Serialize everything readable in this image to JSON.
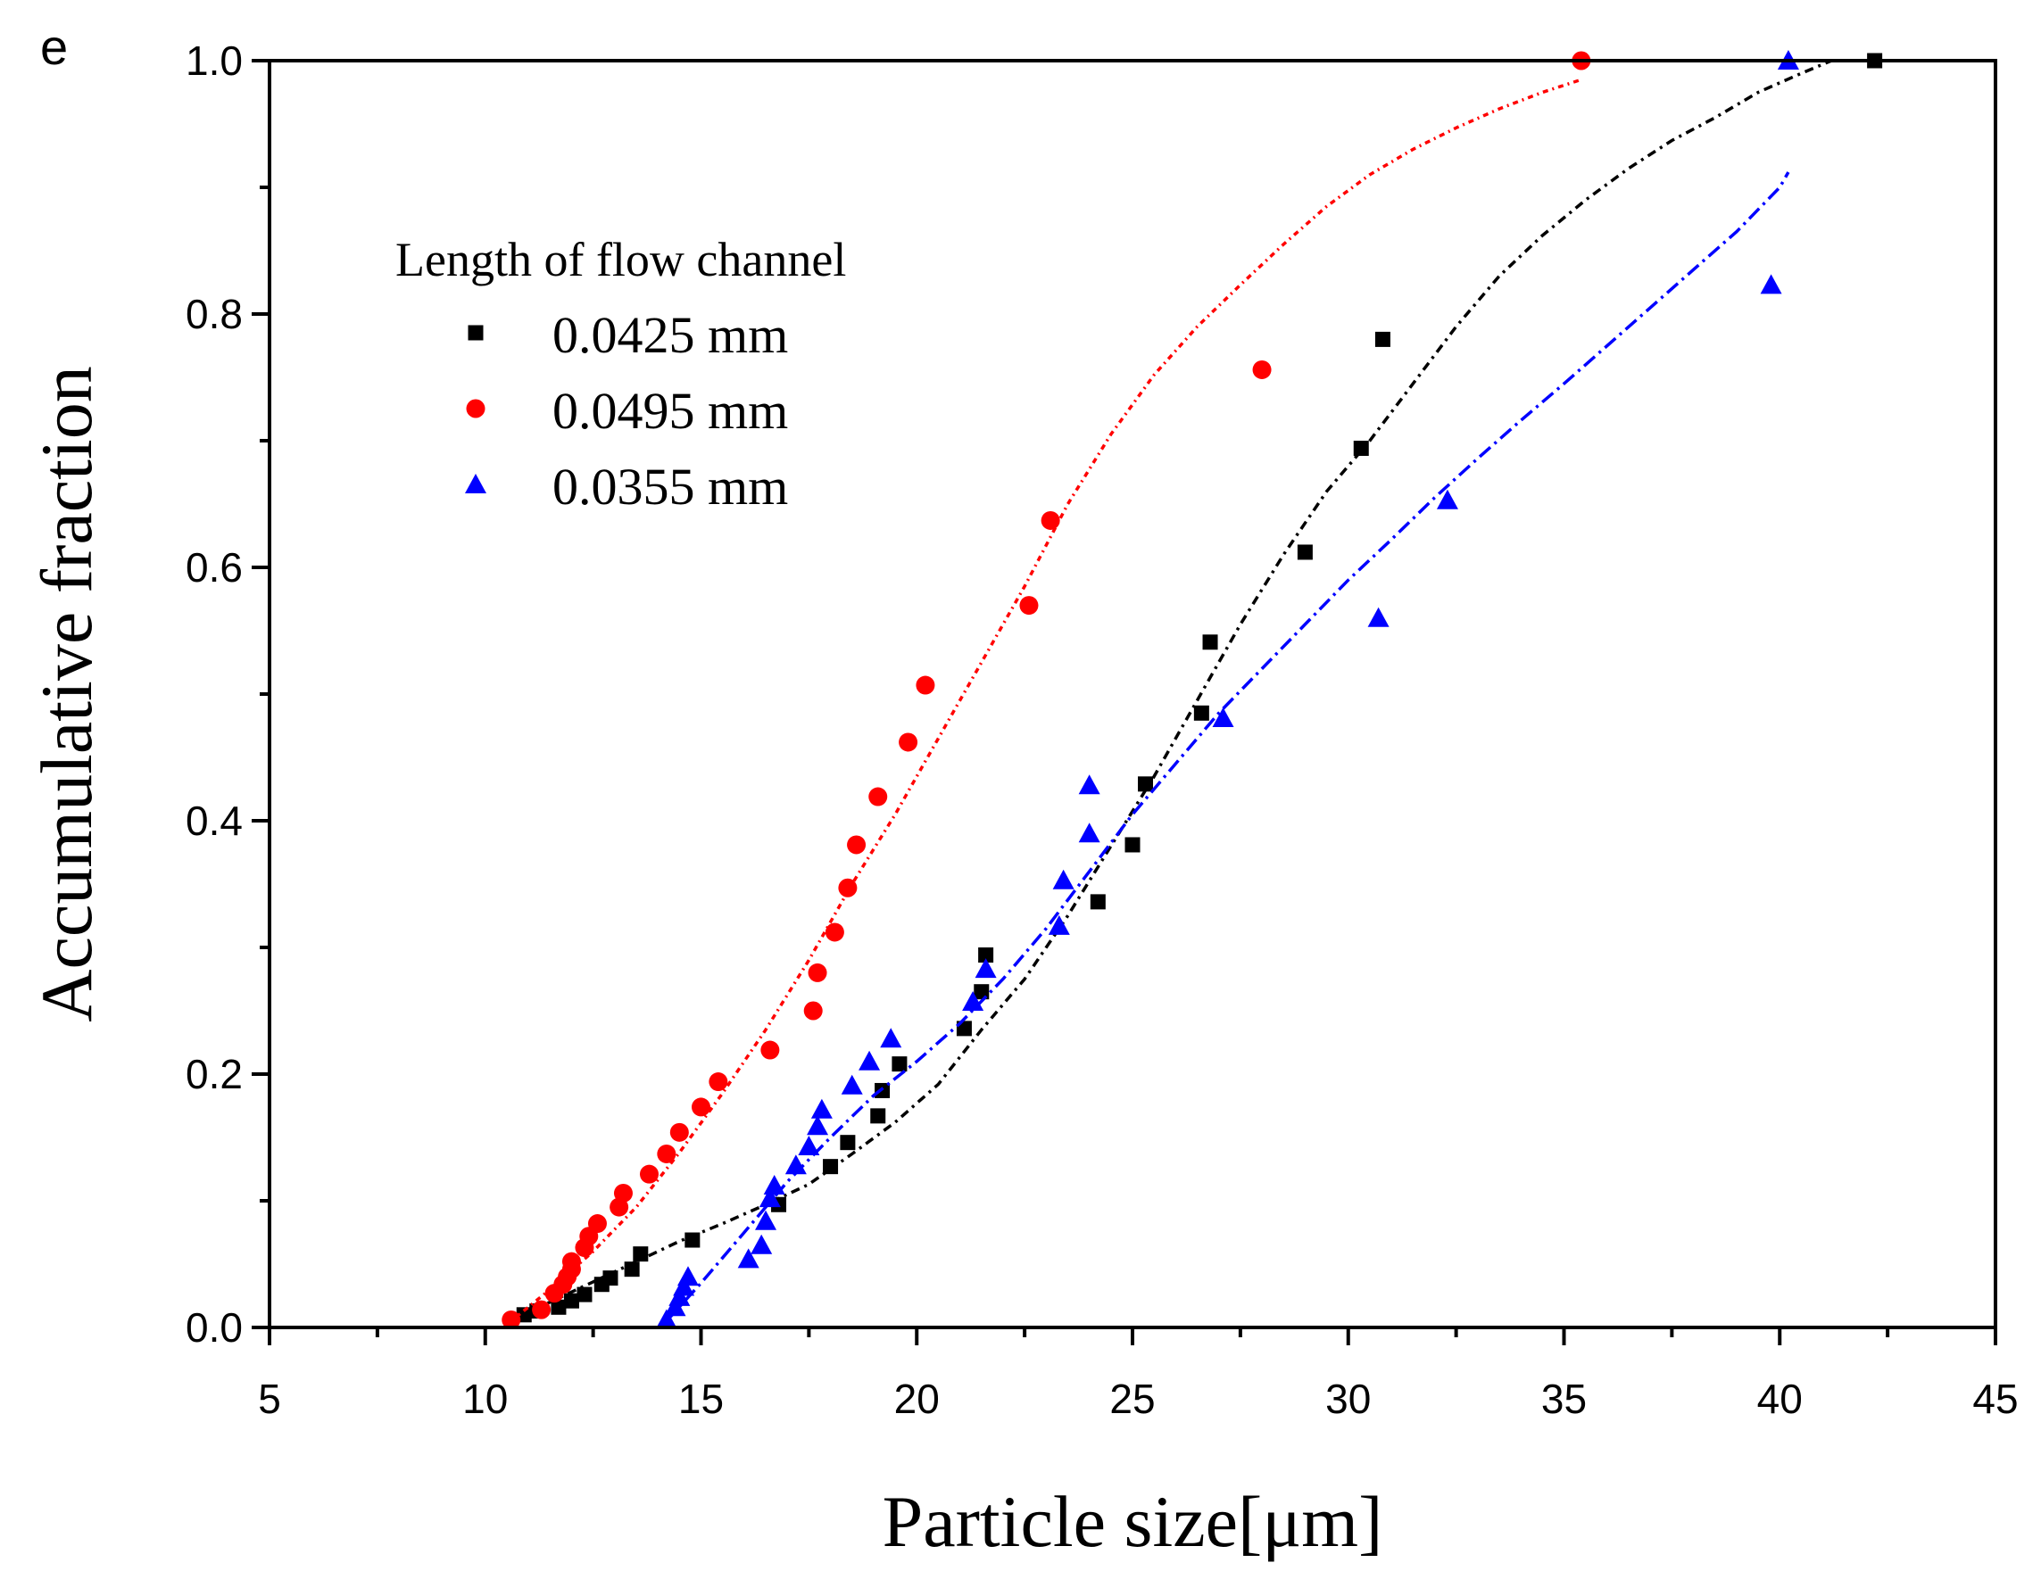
{
  "panel_label": "e",
  "chart_data": {
    "type": "scatter",
    "xlabel": "Particle size[μm]",
    "ylabel": "Accumulative fraction",
    "xlim": [
      5,
      45
    ],
    "ylim": [
      0,
      1.0
    ],
    "xticks": [
      5,
      10,
      15,
      20,
      25,
      30,
      35,
      40,
      45
    ],
    "yticks": [
      0.0,
      0.2,
      0.4,
      0.6,
      0.8,
      1.0
    ],
    "xtick_labels": [
      "5",
      "10",
      "15",
      "20",
      "25",
      "30",
      "35",
      "40",
      "45"
    ],
    "ytick_labels": [
      "0.0",
      "0.2",
      "0.4",
      "0.6",
      "0.8",
      "1.0"
    ],
    "grid": false,
    "legend": {
      "title": "Length of flow channel",
      "placement": "upper-left"
    },
    "series": [
      {
        "name": "0.0425 mm",
        "color": "#000000",
        "marker": "square",
        "x": [
          10.9,
          11.2,
          11.7,
          12.0,
          12.3,
          12.7,
          12.9,
          13.4,
          13.6,
          14.8,
          16.8,
          18.0,
          18.4,
          19.1,
          19.2,
          19.6,
          21.1,
          21.5,
          21.6,
          24.2,
          25.0,
          25.3,
          26.6,
          26.8,
          29.0,
          30.3,
          30.8,
          42.2
        ],
        "y": [
          0.01,
          0.013,
          0.016,
          0.021,
          0.026,
          0.034,
          0.039,
          0.046,
          0.058,
          0.069,
          0.097,
          0.127,
          0.146,
          0.167,
          0.187,
          0.208,
          0.236,
          0.265,
          0.294,
          0.336,
          0.381,
          0.429,
          0.485,
          0.541,
          0.612,
          0.694,
          0.78,
          1.0
        ],
        "fit_x": [
          10.5,
          11.5,
          12.5,
          13.5,
          14.5,
          15.5,
          16.5,
          17.5,
          18.5,
          19.5,
          20.5,
          21.5,
          22.5,
          23.5,
          24.5,
          25.5,
          26.5,
          27.5,
          28.5,
          29.5,
          30.5,
          31.5,
          32.5,
          33.5,
          34.5,
          35.5,
          36.5,
          37.5,
          38.5,
          39.5,
          40.5,
          41.2
        ],
        "fit_y": [
          0.005,
          0.02,
          0.036,
          0.052,
          0.068,
          0.082,
          0.097,
          0.113,
          0.137,
          0.162,
          0.192,
          0.235,
          0.275,
          0.325,
          0.38,
          0.435,
          0.495,
          0.555,
          0.61,
          0.66,
          0.7,
          0.745,
          0.79,
          0.83,
          0.862,
          0.89,
          0.915,
          0.937,
          0.955,
          0.975,
          0.99,
          1.0
        ]
      },
      {
        "name": "0.0495 mm",
        "color": "#ff0000",
        "marker": "circle",
        "x": [
          10.6,
          11.3,
          11.6,
          11.8,
          11.9,
          12.0,
          12.0,
          12.3,
          12.4,
          12.6,
          13.1,
          13.2,
          13.8,
          14.2,
          14.5,
          15.0,
          15.4,
          16.6,
          17.6,
          17.7,
          18.1,
          18.4,
          18.6,
          19.1,
          19.8,
          20.2,
          22.6,
          23.1,
          28.0,
          35.4
        ],
        "y": [
          0.006,
          0.014,
          0.027,
          0.034,
          0.04,
          0.046,
          0.052,
          0.063,
          0.072,
          0.082,
          0.095,
          0.106,
          0.121,
          0.137,
          0.154,
          0.174,
          0.194,
          0.219,
          0.25,
          0.28,
          0.312,
          0.347,
          0.381,
          0.419,
          0.462,
          0.507,
          0.57,
          0.637,
          0.756,
          1.0
        ],
        "fit_x": [
          10.6,
          11.5,
          12.5,
          13.5,
          14.5,
          15.5,
          16.5,
          17.5,
          18.5,
          19.5,
          20.5,
          21.5,
          22.5,
          23.5,
          24.5,
          25.5,
          26.5,
          27.5,
          28.5,
          29.5,
          30.5,
          31.5,
          32.5,
          33.5,
          34.5,
          35.4
        ],
        "fit_y": [
          0.005,
          0.03,
          0.06,
          0.095,
          0.138,
          0.185,
          0.235,
          0.29,
          0.35,
          0.405,
          0.465,
          0.525,
          0.585,
          0.65,
          0.705,
          0.752,
          0.79,
          0.823,
          0.855,
          0.885,
          0.91,
          0.93,
          0.947,
          0.962,
          0.975,
          0.985
        ]
      },
      {
        "name": "0.0355 mm",
        "color": "#0000ff",
        "marker": "triangle",
        "x": [
          14.2,
          14.4,
          14.5,
          14.6,
          14.7,
          16.1,
          16.4,
          16.5,
          16.6,
          16.7,
          17.2,
          17.5,
          17.7,
          17.8,
          18.5,
          18.9,
          19.4,
          21.3,
          21.6,
          23.3,
          23.4,
          24.0,
          24.0,
          27.1,
          30.7,
          32.3,
          39.8,
          40.2
        ],
        "y": [
          0.006,
          0.016,
          0.024,
          0.032,
          0.04,
          0.054,
          0.065,
          0.084,
          0.102,
          0.112,
          0.128,
          0.143,
          0.159,
          0.172,
          0.191,
          0.21,
          0.228,
          0.257,
          0.283,
          0.317,
          0.353,
          0.39,
          0.428,
          0.481,
          0.56,
          0.653,
          0.823,
          1.0
        ],
        "fit_x": [
          14.2,
          15.0,
          16.0,
          17.0,
          18.0,
          19.0,
          20.0,
          21.0,
          22.0,
          23.0,
          24.0,
          25.0,
          26.0,
          27.0,
          28.0,
          29.0,
          30.0,
          31.0,
          32.0,
          33.0,
          34.0,
          35.0,
          36.0,
          37.0,
          38.0,
          39.0,
          40.0,
          40.2
        ],
        "fit_y": [
          0.005,
          0.035,
          0.075,
          0.115,
          0.15,
          0.183,
          0.21,
          0.24,
          0.275,
          0.315,
          0.36,
          0.405,
          0.445,
          0.485,
          0.52,
          0.555,
          0.59,
          0.622,
          0.655,
          0.686,
          0.716,
          0.745,
          0.775,
          0.805,
          0.835,
          0.865,
          0.9,
          0.912
        ]
      }
    ]
  }
}
